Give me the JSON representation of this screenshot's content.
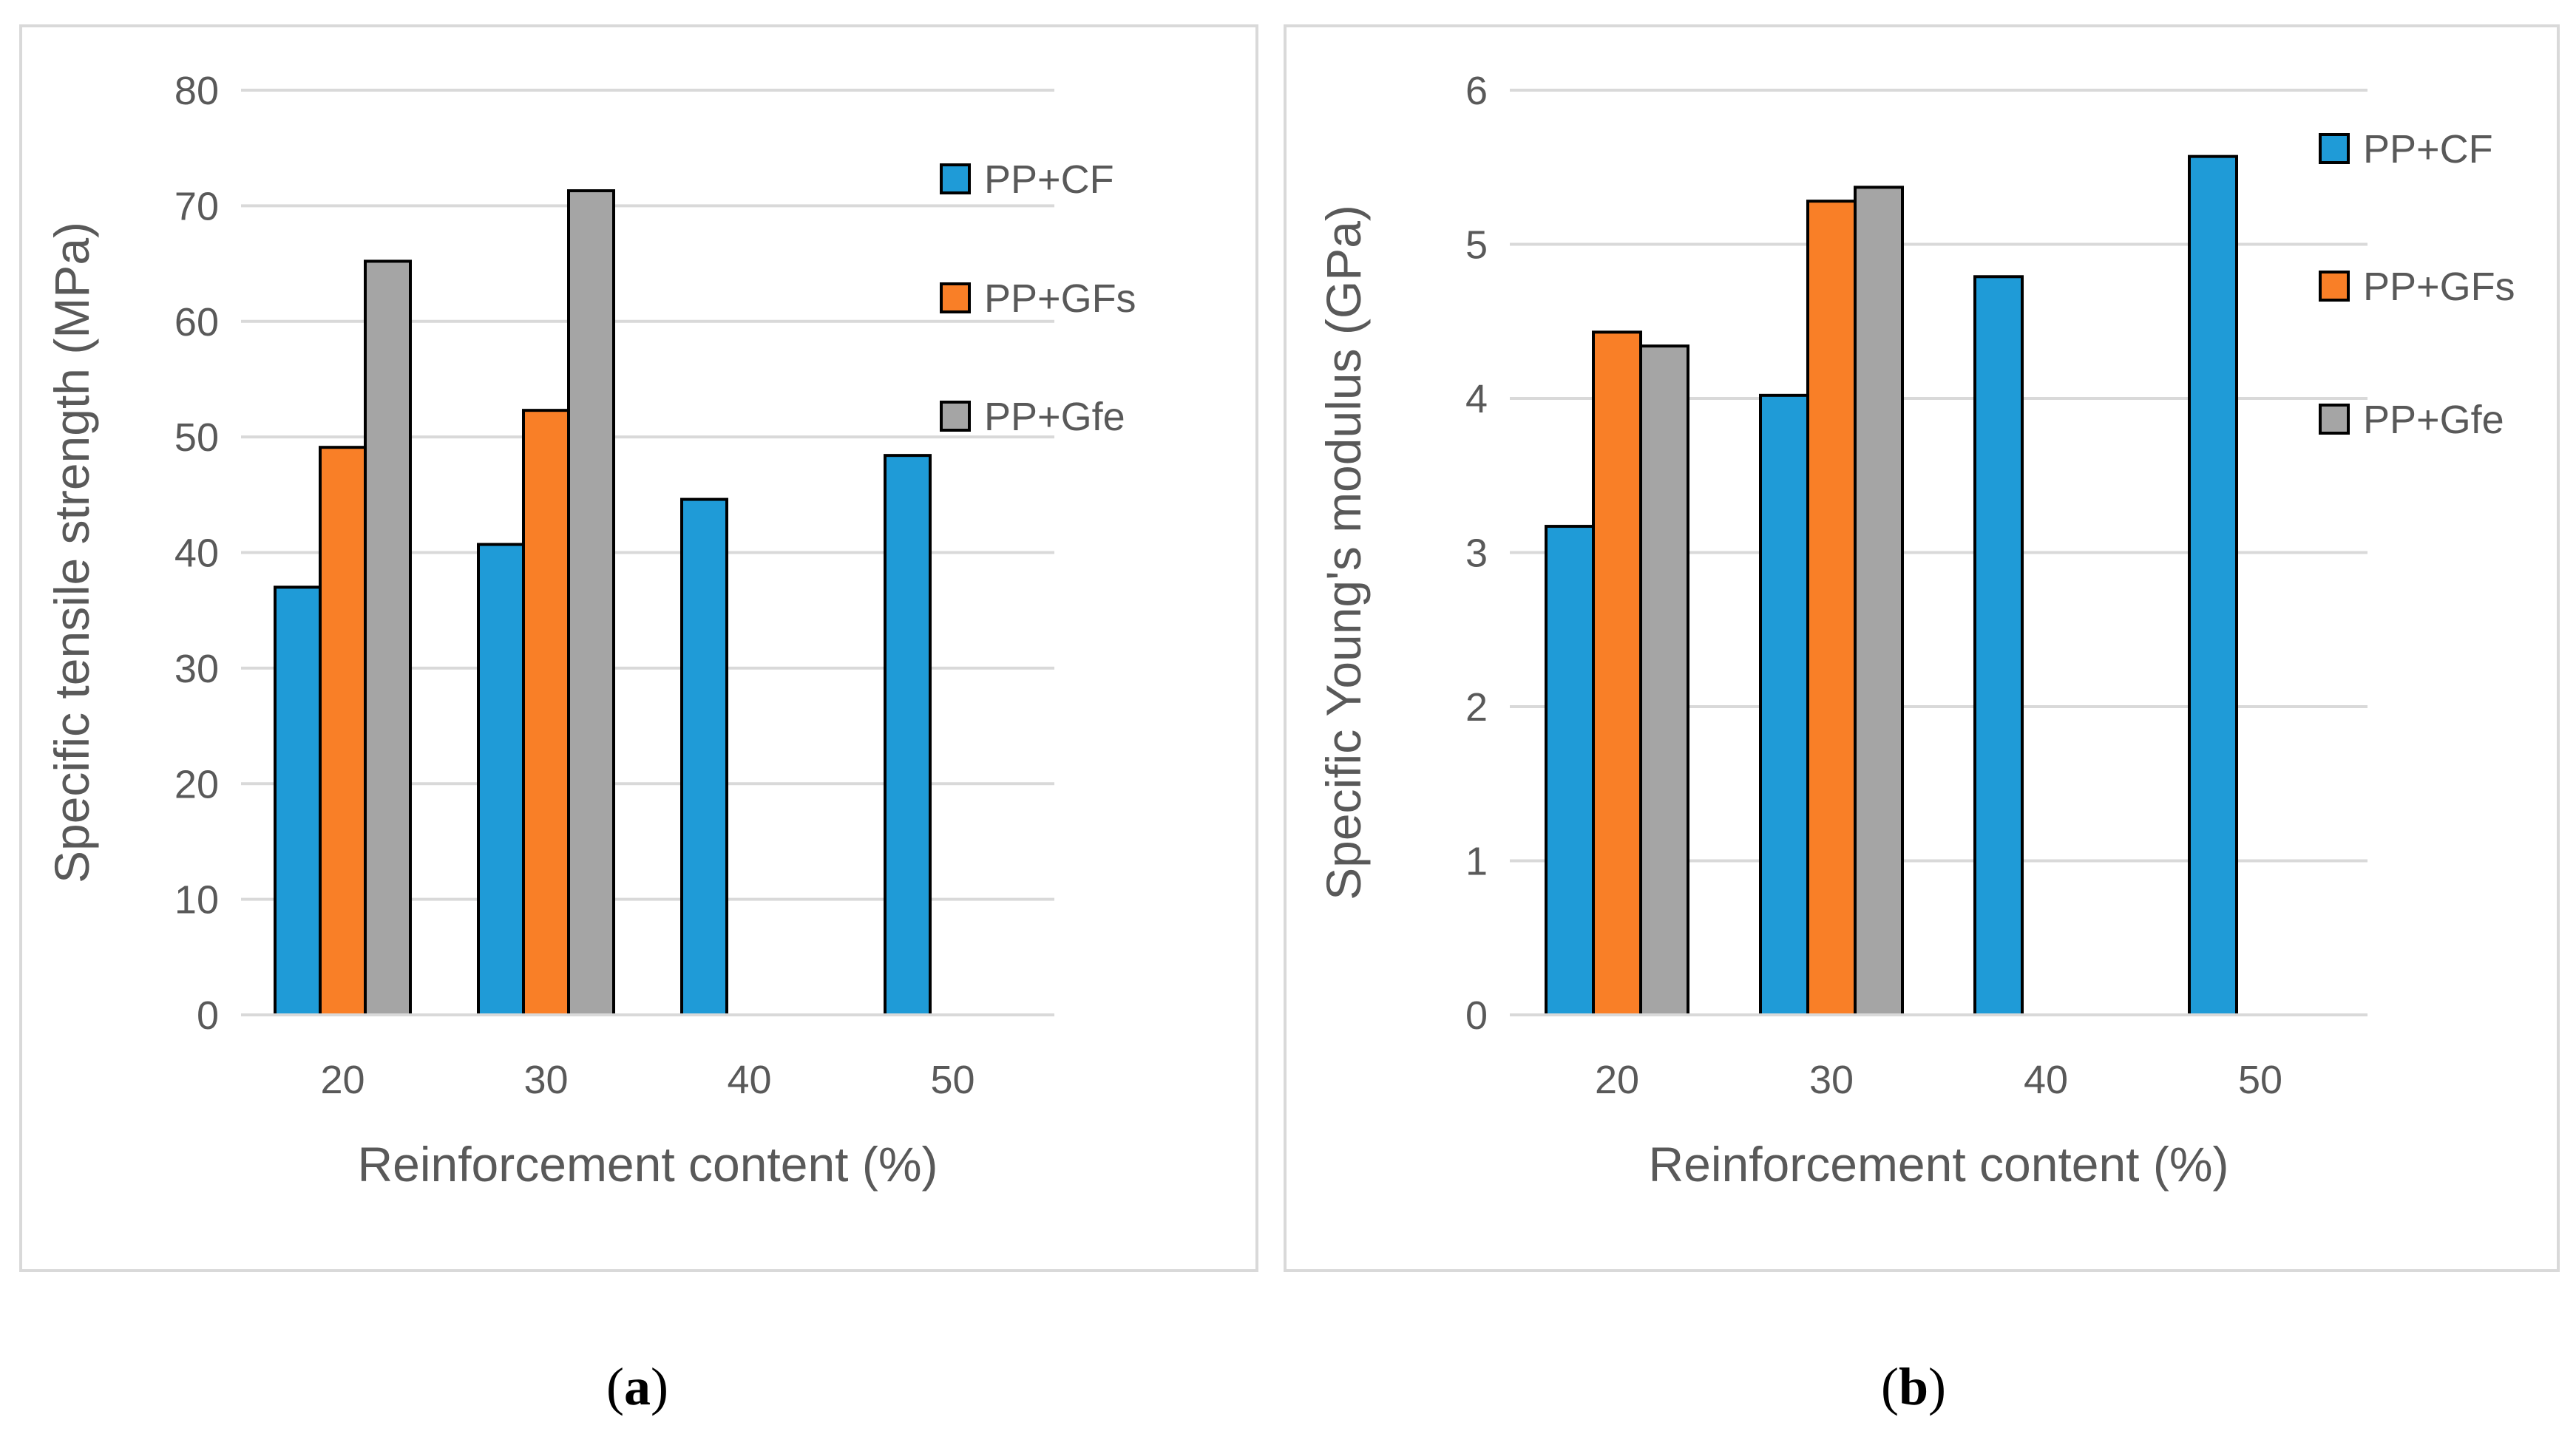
{
  "chart_data": [
    {
      "id": "a",
      "type": "bar",
      "caption_label": "a",
      "categories": [
        "20",
        "30",
        "40",
        "50"
      ],
      "series": [
        {
          "name": "PP+CF",
          "color": "#1f9bd7",
          "values": [
            37.0,
            40.7,
            44.6,
            48.4
          ]
        },
        {
          "name": "PP+GFs",
          "color": "#f97f27",
          "values": [
            49.1,
            52.3,
            null,
            null
          ]
        },
        {
          "name": "PP+Gfe",
          "color": "#a5a5a5",
          "values": [
            65.2,
            71.3,
            null,
            null
          ]
        }
      ],
      "xlabel": "Reinforcement content (%)",
      "ylabel": "Specific tensile strength (MPa)",
      "ylim": [
        0,
        80
      ],
      "yticks": [
        "0",
        "10",
        "20",
        "30",
        "40",
        "50",
        "60",
        "70",
        "80"
      ],
      "grid": true,
      "legend_position": "top-right"
    },
    {
      "id": "b",
      "type": "bar",
      "caption_label": "b",
      "categories": [
        "20",
        "30",
        "40",
        "50"
      ],
      "series": [
        {
          "name": "PP+CF",
          "color": "#1f9bd7",
          "values": [
            3.17,
            4.02,
            4.79,
            5.57
          ]
        },
        {
          "name": "PP+GFs",
          "color": "#f97f27",
          "values": [
            4.43,
            5.28,
            null,
            null
          ]
        },
        {
          "name": "PP+Gfe",
          "color": "#a5a5a5",
          "values": [
            4.34,
            5.37,
            null,
            null
          ]
        }
      ],
      "xlabel": "Reinforcement content (%)",
      "ylabel": "Specific Young's modulus (GPa)",
      "ylim": [
        0,
        6
      ],
      "yticks": [
        "0",
        "1",
        "2",
        "3",
        "4",
        "5",
        "6"
      ],
      "grid": true,
      "legend_position": "top-right"
    }
  ],
  "colors": {
    "grid": "#d9d9d9",
    "text": "#595959",
    "bar_stroke": "#000000"
  }
}
